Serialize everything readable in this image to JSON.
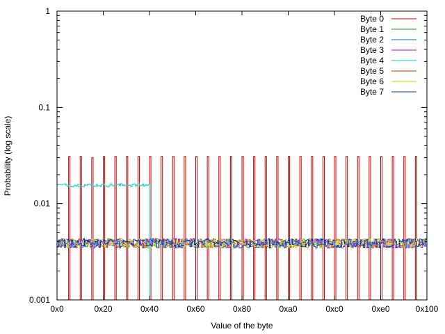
{
  "chart_data": {
    "type": "line",
    "style": "step histogram",
    "title": "",
    "xlabel": "Value of the byte",
    "ylabel": "Probability (log scale)",
    "x_scale": "linear",
    "y_scale": "log",
    "xlim": [
      0,
      256
    ],
    "ylim": [
      0.001,
      1
    ],
    "x_ticks": [
      0,
      32,
      64,
      96,
      128,
      160,
      192,
      224,
      256
    ],
    "x_tick_labels": [
      "0x0",
      "0x20",
      "0x40",
      "0x60",
      "0x80",
      "0xa0",
      "0xc0",
      "0xe0",
      "0x100"
    ],
    "y_ticks": [
      0.001,
      0.01,
      0.1,
      1
    ],
    "y_tick_labels": [
      "0.001",
      "0.01",
      "0.1",
      "1"
    ],
    "grid": false,
    "legend_position": "top-right",
    "series": [
      {
        "name": "Byte 0",
        "color": "#cc0000",
        "pattern": "spikes of ~0.031 at every multiple of 8 from 0x08 to 0xf8, near zero elsewhere",
        "spike_x": [
          8,
          16,
          24,
          32,
          40,
          48,
          56,
          64,
          72,
          80,
          88,
          96,
          104,
          112,
          120,
          128,
          136,
          144,
          152,
          160,
          168,
          176,
          184,
          192,
          200,
          208,
          216,
          224,
          232,
          240,
          248
        ],
        "spike_values": [
          0.031,
          0.031,
          0.03,
          0.031,
          0.031,
          0.031,
          0.031,
          0.031,
          0.031,
          0.031,
          0.031,
          0.031,
          0.031,
          0.031,
          0.031,
          0.031,
          0.031,
          0.031,
          0.031,
          0.031,
          0.031,
          0.031,
          0.031,
          0.031,
          0.031,
          0.031,
          0.031,
          0.031,
          0.031,
          0.031,
          0.031
        ]
      },
      {
        "name": "Byte 1",
        "color": "#00aa00",
        "pattern": "flat around 0.0039 across all byte values"
      },
      {
        "name": "Byte 2",
        "color": "#0077cc",
        "pattern": "flat around 0.0039 across all byte values"
      },
      {
        "name": "Byte 3",
        "color": "#cc00cc",
        "pattern": "flat around 0.0039 across all byte values"
      },
      {
        "name": "Byte 4",
        "color": "#00cccc",
        "pattern": "about 0.0156 for values 0x00-0x3f, zero for 0x40 and above",
        "segment": {
          "x_start": 0,
          "x_end": 64,
          "value": 0.0156
        }
      },
      {
        "name": "Byte 5",
        "color": "#cc3300",
        "pattern": "flat around 0.0039 across all byte values"
      },
      {
        "name": "Byte 6",
        "color": "#cccc00",
        "pattern": "flat around 0.0039 across all byte values"
      },
      {
        "name": "Byte 7",
        "color": "#0033cc",
        "pattern": "flat around 0.0039 across all byte values"
      }
    ],
    "uniform_level": 0.0039
  }
}
